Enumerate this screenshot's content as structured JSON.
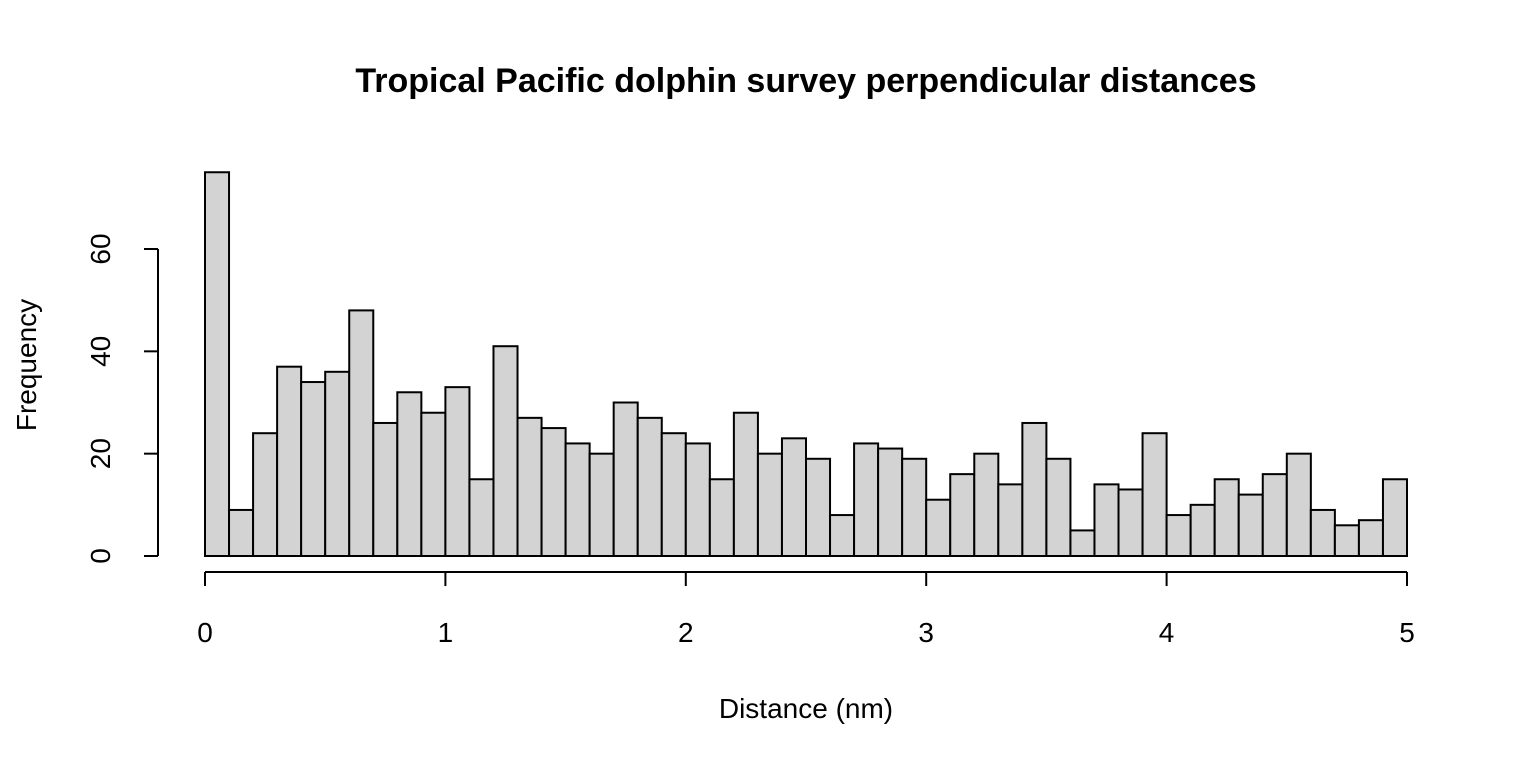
{
  "chart_data": {
    "type": "bar",
    "subtype": "histogram",
    "title": "Tropical Pacific dolphin survey perpendicular distances",
    "xlabel": "Distance (nm)",
    "ylabel": "Frequency",
    "bin_width": 0.1,
    "bin_start": 0,
    "values": [
      75,
      9,
      24,
      37,
      34,
      36,
      48,
      26,
      32,
      28,
      33,
      15,
      41,
      27,
      25,
      22,
      20,
      30,
      27,
      24,
      22,
      15,
      28,
      20,
      23,
      19,
      8,
      22,
      21,
      19,
      11,
      16,
      20,
      14,
      26,
      19,
      5,
      14,
      13,
      24,
      8,
      10,
      15,
      12,
      16,
      20,
      9,
      6,
      7,
      15
    ],
    "xlim": [
      0,
      5
    ],
    "ylim": [
      0,
      75
    ],
    "x_ticks": [
      "0",
      "1",
      "2",
      "3",
      "4",
      "5"
    ],
    "y_ticks": [
      "0",
      "20",
      "40",
      "60"
    ],
    "bar_fill": "#d3d3d3",
    "bar_stroke": "#000000",
    "grid": false,
    "legend": "none"
  }
}
